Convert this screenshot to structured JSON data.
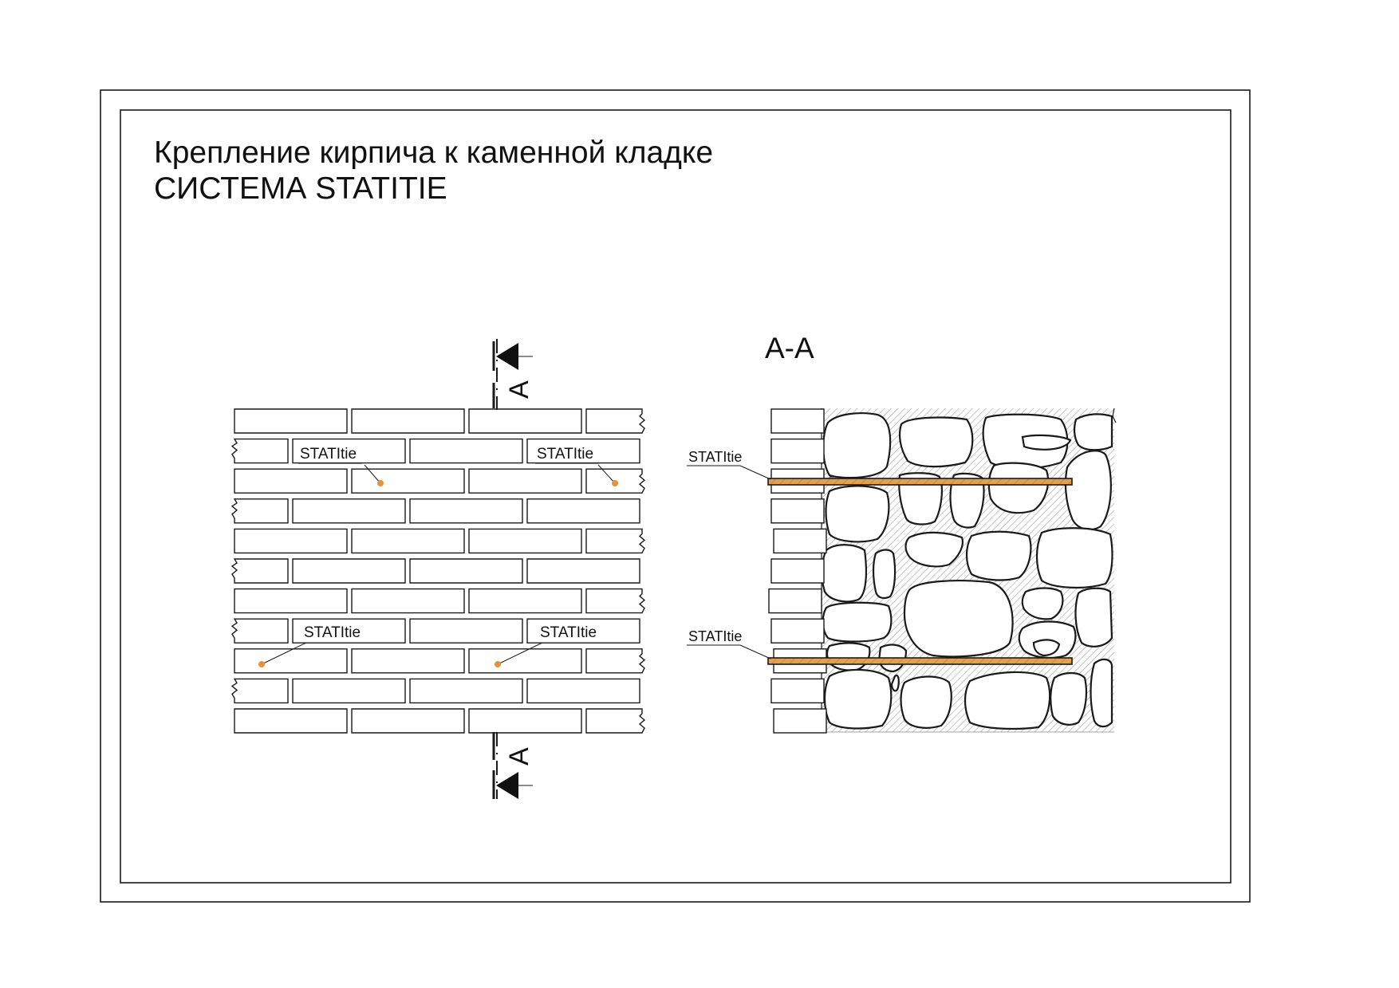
{
  "title": {
    "line1": "Крепление кирпича к каменной кладке",
    "line2": "СИСТЕМА STATITIE"
  },
  "section_mark": {
    "letter": "A"
  },
  "section_view": {
    "title": "А-А"
  },
  "tie_label": "STATItie",
  "colors": {
    "tie": "#e8913a",
    "tie_section": "#e3a14f",
    "line": "#1a1a1a",
    "hatch": "#9a9a9a"
  }
}
